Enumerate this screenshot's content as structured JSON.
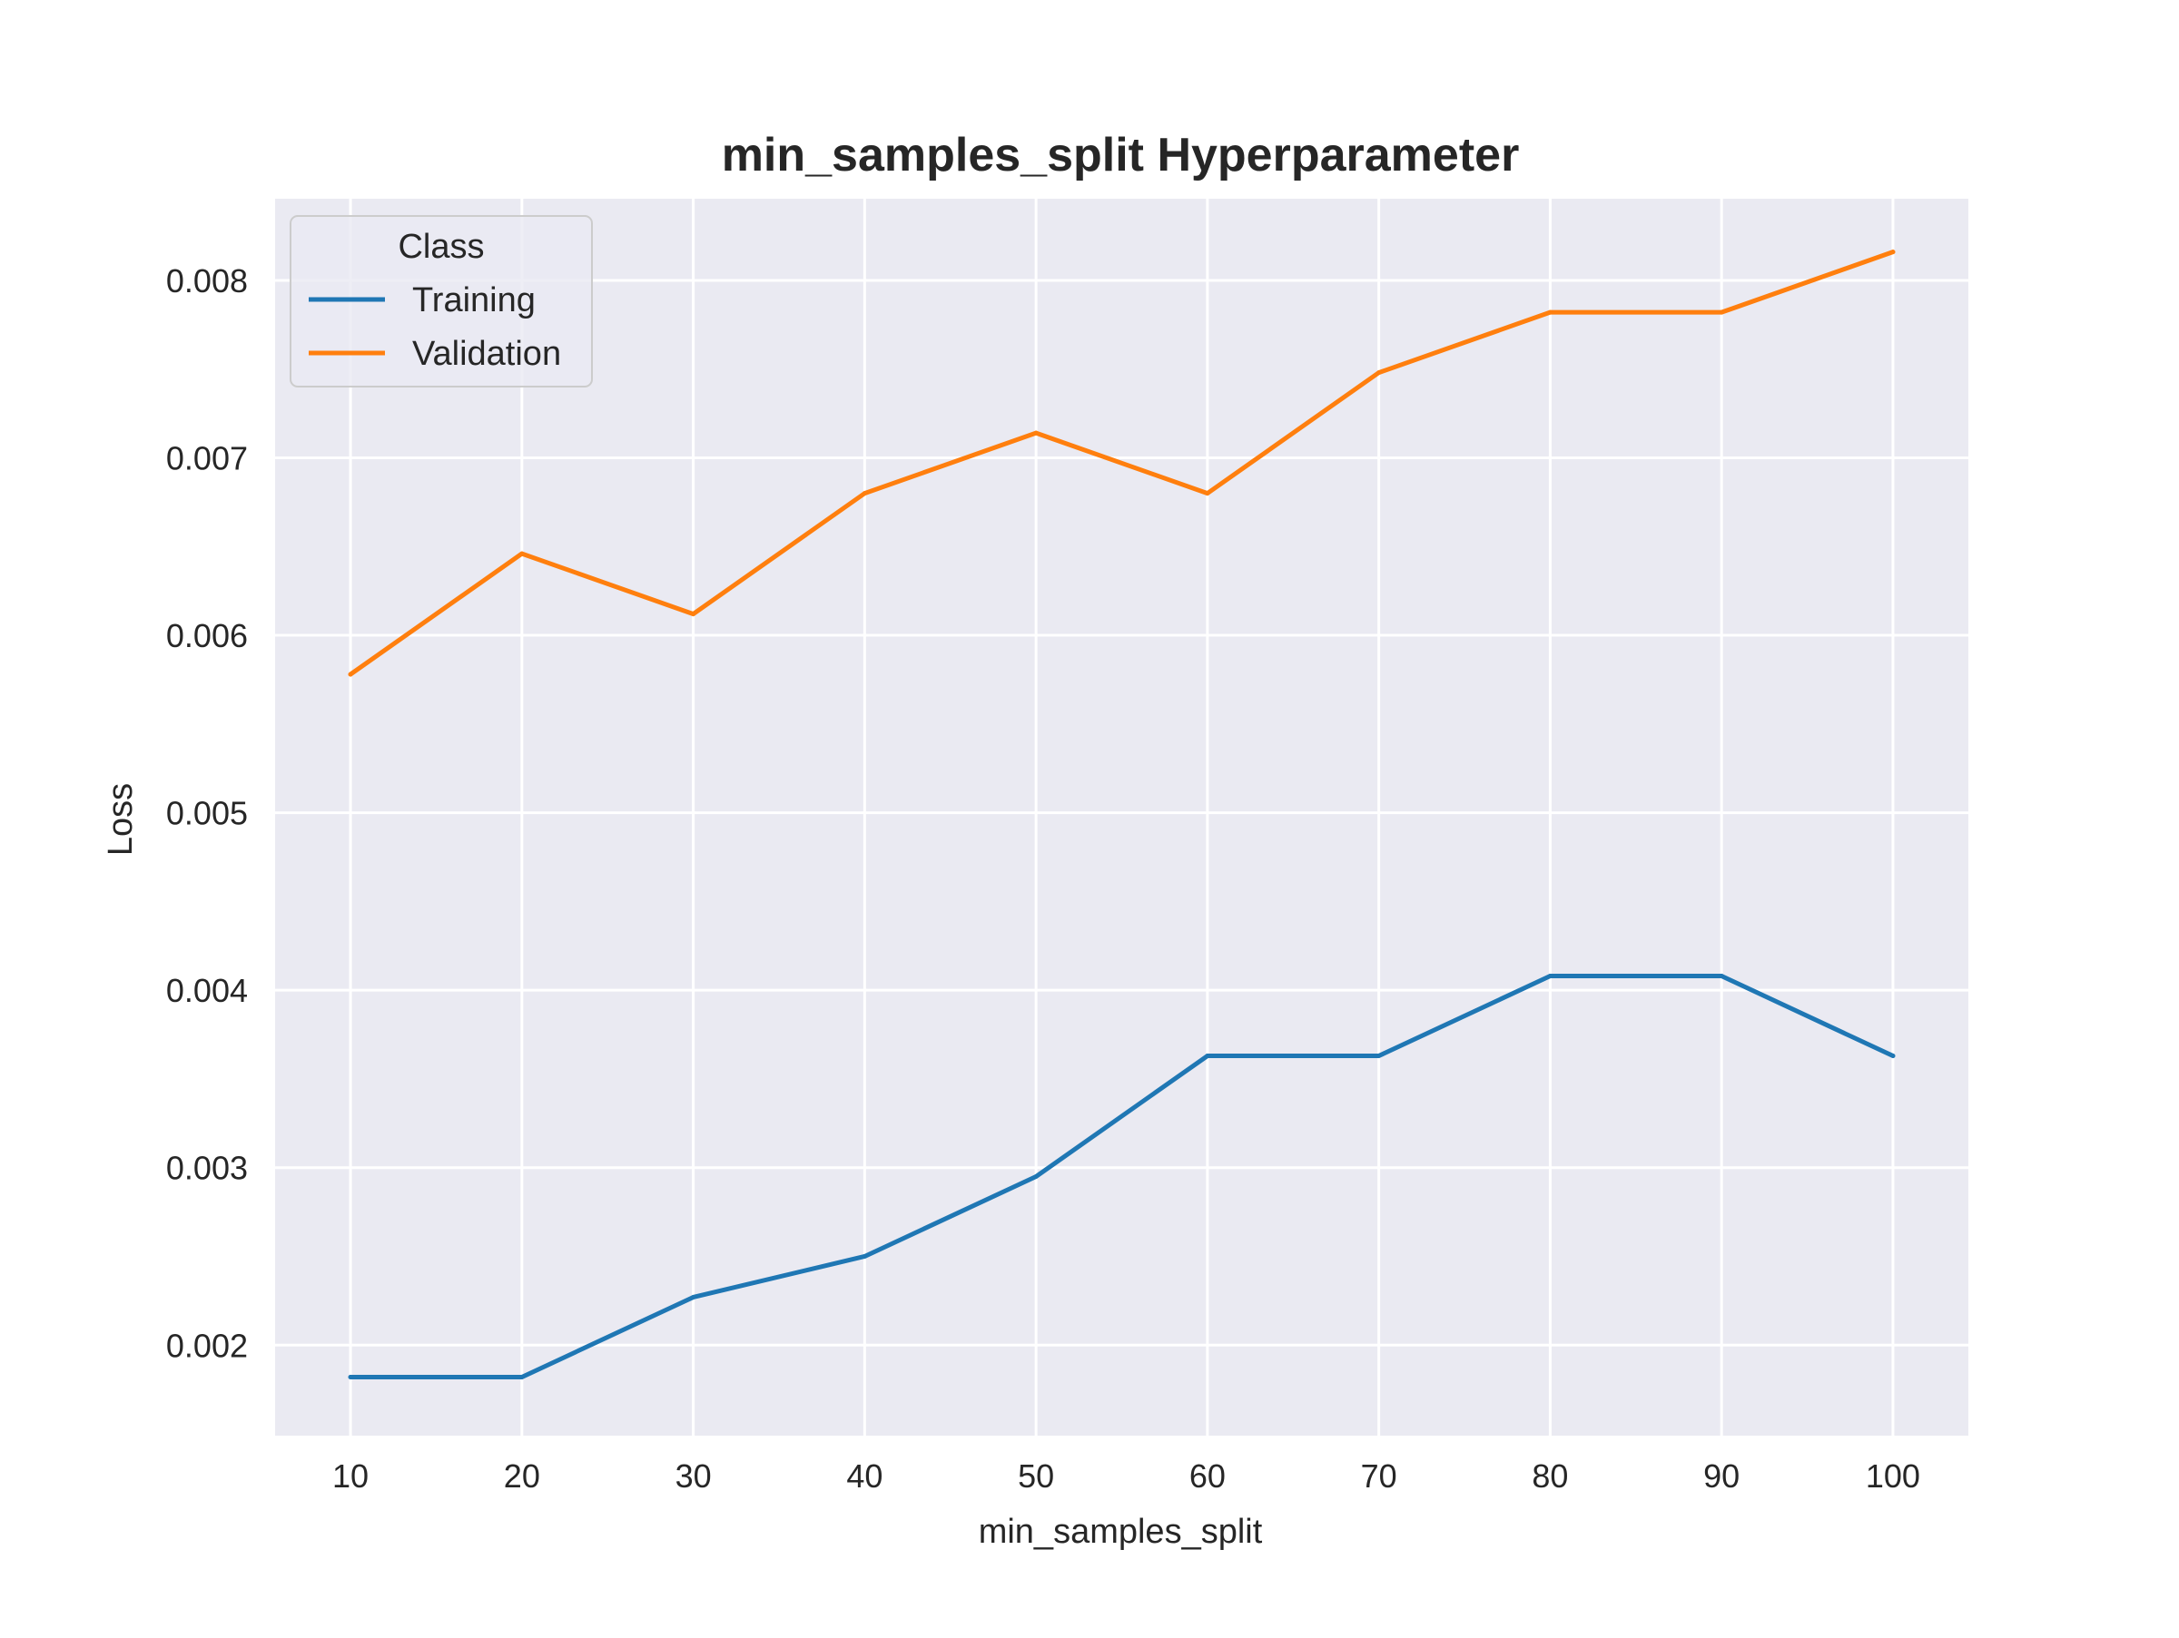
{
  "chart_data": {
    "type": "line",
    "title": "min_samples_split Hyperparameter",
    "xlabel": "min_samples_split",
    "ylabel": "Loss",
    "x": [
      10,
      20,
      30,
      40,
      50,
      60,
      70,
      80,
      90,
      100
    ],
    "xlim": [
      5.6,
      104.4
    ],
    "ylim": [
      0.00149,
      0.00846
    ],
    "xticks": [
      10,
      20,
      30,
      40,
      50,
      60,
      70,
      80,
      90,
      100
    ],
    "xtick_labels": [
      "10",
      "20",
      "30",
      "40",
      "50",
      "60",
      "70",
      "80",
      "90",
      "100"
    ],
    "yticks": [
      0.002,
      0.003,
      0.004,
      0.005,
      0.006,
      0.007,
      0.008
    ],
    "ytick_labels": [
      "0.002",
      "0.003",
      "0.004",
      "0.005",
      "0.006",
      "0.007",
      "0.008"
    ],
    "grid": true,
    "legend": {
      "title": "Class",
      "position": "top-left"
    },
    "series": [
      {
        "name": "Training",
        "color": "#1f77b4",
        "values": [
          0.00182,
          0.00182,
          0.00227,
          0.0025,
          0.00295,
          0.00363,
          0.00363,
          0.00408,
          0.00408,
          0.00363
        ]
      },
      {
        "name": "Validation",
        "color": "#ff7f0e",
        "values": [
          0.00578,
          0.00646,
          0.00612,
          0.0068,
          0.00714,
          0.0068,
          0.00748,
          0.00782,
          0.00782,
          0.00816
        ]
      }
    ],
    "colors": {
      "plot_background": "#eaeaf2",
      "grid": "#ffffff",
      "text": "#262626"
    }
  }
}
